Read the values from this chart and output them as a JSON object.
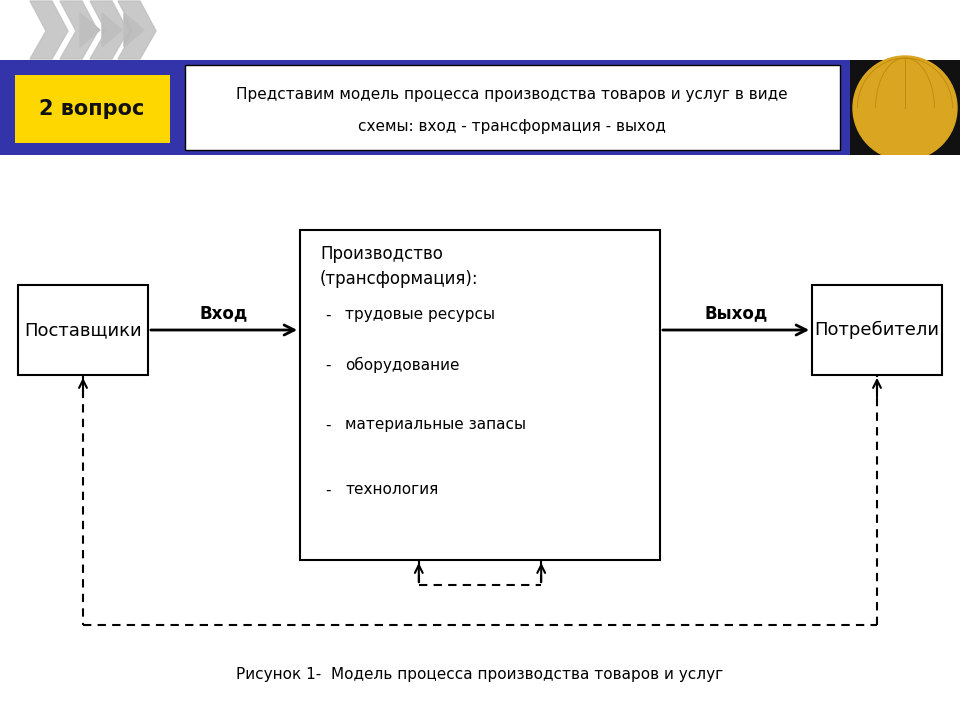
{
  "bg_color": "#F5C99B",
  "header_blue": "#3333AA",
  "header_black": "#111111",
  "header_label_bg": "#FFD700",
  "header_label_text": "2 вопрос",
  "header_title_line1": "Представим модель процесса производства товаров и услуг в виде",
  "header_title_line2": "схемы: вход - трансформация - выход",
  "box_suppliers": "Поставщики",
  "box_consumers": "Потребители",
  "label_vhod": "Вход",
  "label_vykhod": "Выход",
  "center_title1": "Производство",
  "center_title2": "(трансформация):",
  "center_items": [
    "трудовые ресурсы",
    "оборудование",
    "материальные запасы",
    "технология"
  ],
  "caption": "Рисунок 1-  Модель процесса производства товаров и услуг",
  "box_face": "#FFFFFF",
  "box_edge": "#000000",
  "fig_width": 9.6,
  "fig_height": 7.2
}
